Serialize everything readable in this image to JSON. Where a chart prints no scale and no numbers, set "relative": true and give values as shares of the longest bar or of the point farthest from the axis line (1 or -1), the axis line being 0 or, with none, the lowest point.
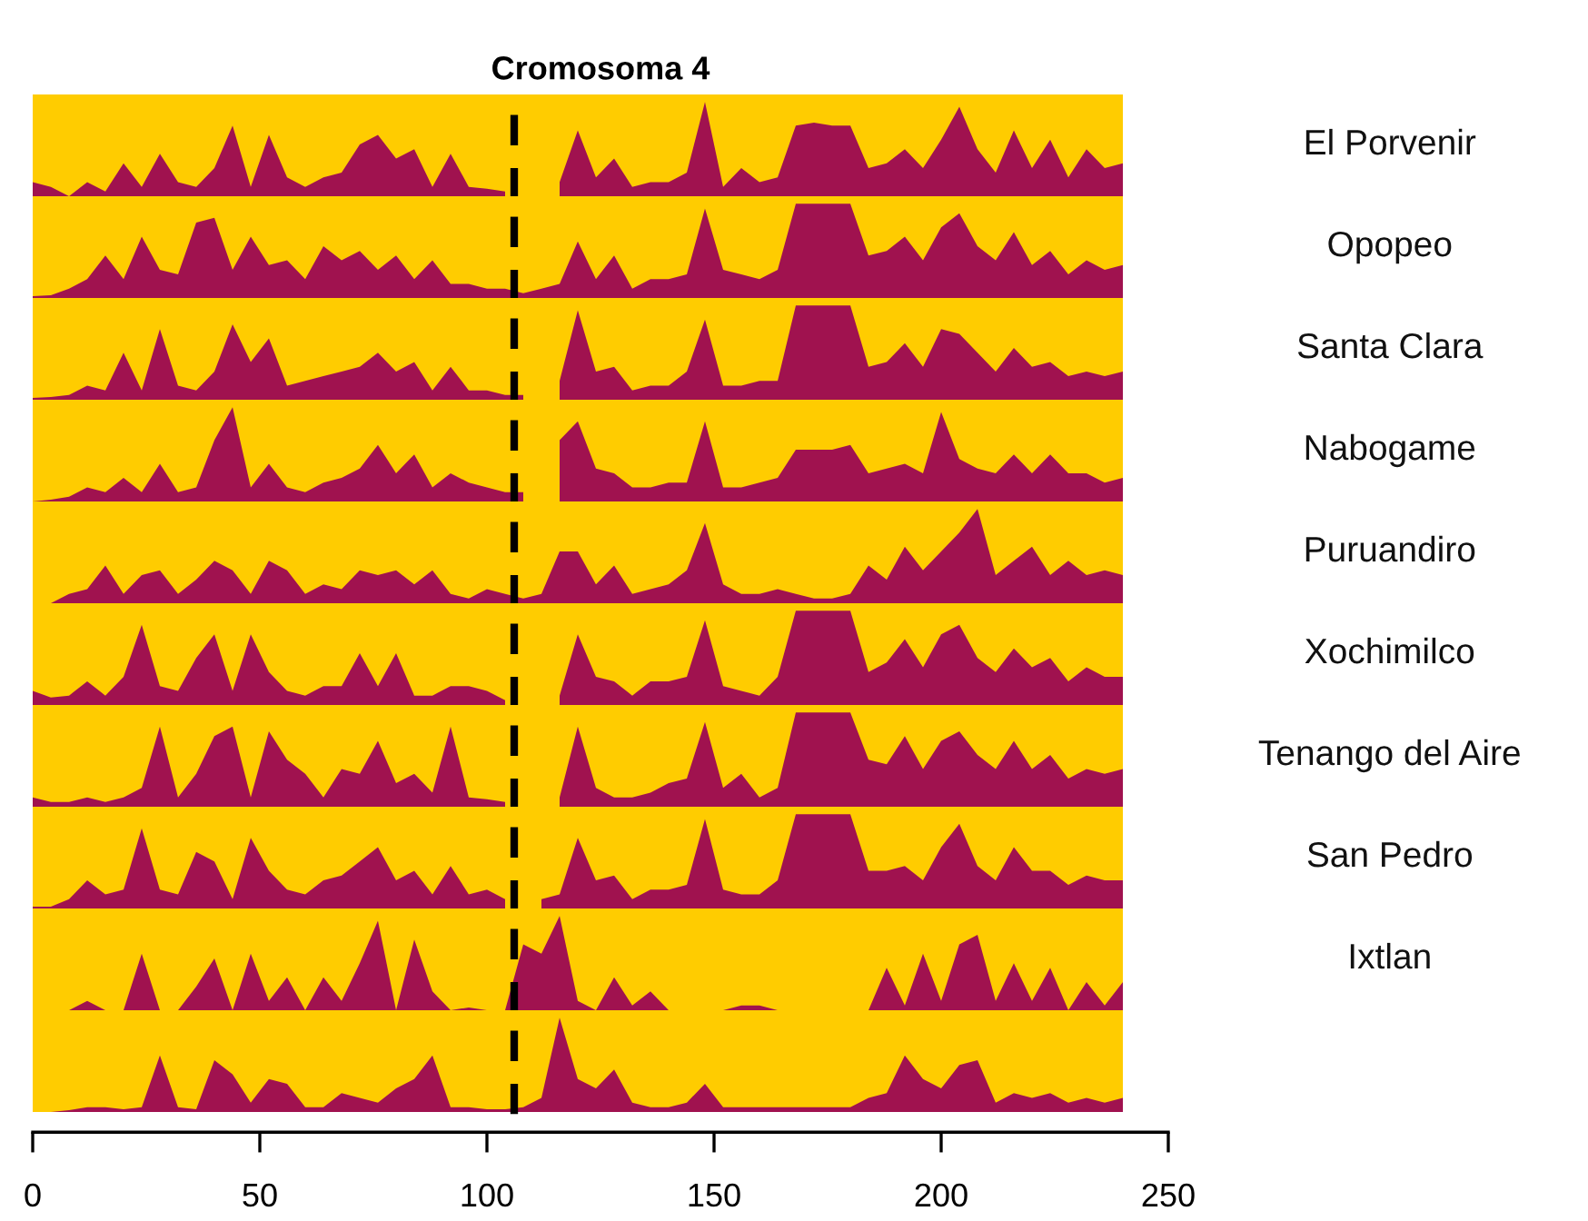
{
  "chart_data": [
    {
      "type": "area",
      "relative": true,
      "title": "Cromosoma 4",
      "xlim": [
        0,
        250
      ],
      "tick_labels": false,
      "x": [
        0,
        4,
        8,
        12,
        16,
        20,
        24,
        28,
        32,
        36,
        40,
        44,
        48,
        52,
        56,
        60,
        64,
        68,
        72,
        76,
        80,
        84,
        88,
        92,
        96,
        100,
        104,
        108,
        112,
        116,
        120,
        124,
        128,
        132,
        136,
        140,
        144,
        148,
        152,
        156,
        160,
        164,
        168,
        172,
        176,
        180,
        184,
        188,
        192,
        196,
        200,
        204,
        208,
        212,
        216,
        220,
        224,
        228,
        232,
        236,
        240
      ],
      "series": [
        {
          "name": "El Porvenir",
          "color": "#a0124f",
          "values": [
            0.15,
            0.1,
            0,
            0.15,
            0.05,
            0.35,
            0.1,
            0.45,
            0.15,
            0.1,
            0.3,
            0.75,
            0.1,
            0.65,
            0.2,
            0.1,
            0.2,
            0.25,
            0.55,
            0.65,
            0.4,
            0.5,
            0.1,
            0.45,
            0.1,
            0.08,
            0.05,
            null,
            null,
            0.15,
            0.7,
            0.2,
            0.4,
            0.1,
            0.15,
            0.15,
            0.25,
            1.0,
            0.1,
            0.3,
            0.15,
            0.2,
            0.75,
            0.78,
            0.75,
            0.75,
            0.3,
            0.35,
            0.5,
            0.3,
            0.6,
            0.95,
            0.5,
            0.25,
            0.7,
            0.3,
            0.6,
            0.2,
            0.5,
            0.3,
            0.35
          ]
        }
      ],
      "ref_lines": [
        {
          "axis": "x",
          "value": 106,
          "color": "#000000",
          "line_style": "dashed"
        }
      ]
    },
    {
      "type": "area",
      "relative": true,
      "xlim": [
        0,
        250
      ],
      "tick_labels": false,
      "x": [
        0,
        4,
        8,
        12,
        16,
        20,
        24,
        28,
        32,
        36,
        40,
        44,
        48,
        52,
        56,
        60,
        64,
        68,
        72,
        76,
        80,
        84,
        88,
        92,
        96,
        100,
        104,
        108,
        112,
        116,
        120,
        124,
        128,
        132,
        136,
        140,
        144,
        148,
        152,
        156,
        160,
        164,
        168,
        172,
        176,
        180,
        184,
        188,
        192,
        196,
        200,
        204,
        208,
        212,
        216,
        220,
        224,
        228,
        232,
        236,
        240
      ],
      "series": [
        {
          "name": "Opopeo",
          "color": "#a0124f",
          "values": [
            0.02,
            0.03,
            0.1,
            0.2,
            0.45,
            0.2,
            0.65,
            0.3,
            0.25,
            0.8,
            0.85,
            0.3,
            0.65,
            0.35,
            0.4,
            0.2,
            0.55,
            0.4,
            0.5,
            0.3,
            0.45,
            0.2,
            0.4,
            0.15,
            0.15,
            0.1,
            0.1,
            0.05,
            0.1,
            0.15,
            0.6,
            0.2,
            0.45,
            0.1,
            0.2,
            0.2,
            0.25,
            0.95,
            0.3,
            0.25,
            0.2,
            0.3,
            1.0,
            1.0,
            1.0,
            1.0,
            0.45,
            0.5,
            0.65,
            0.4,
            0.75,
            0.9,
            0.55,
            0.4,
            0.7,
            0.35,
            0.5,
            0.25,
            0.4,
            0.3,
            0.35
          ]
        }
      ],
      "ref_lines": [
        {
          "axis": "x",
          "value": 106,
          "color": "#000000",
          "line_style": "dashed"
        }
      ]
    },
    {
      "type": "area",
      "relative": true,
      "xlim": [
        0,
        250
      ],
      "tick_labels": false,
      "x": [
        0,
        4,
        8,
        12,
        16,
        20,
        24,
        28,
        32,
        36,
        40,
        44,
        48,
        52,
        56,
        60,
        64,
        68,
        72,
        76,
        80,
        84,
        88,
        92,
        96,
        100,
        104,
        108,
        112,
        116,
        120,
        124,
        128,
        132,
        136,
        140,
        144,
        148,
        152,
        156,
        160,
        164,
        168,
        172,
        176,
        180,
        184,
        188,
        192,
        196,
        200,
        204,
        208,
        212,
        216,
        220,
        224,
        228,
        232,
        236,
        240
      ],
      "series": [
        {
          "name": "Santa Clara",
          "color": "#a0124f",
          "values": [
            0.02,
            0.03,
            0.05,
            0.15,
            0.1,
            0.5,
            0.1,
            0.75,
            0.15,
            0.1,
            0.3,
            0.8,
            0.4,
            0.65,
            0.15,
            0.2,
            0.25,
            0.3,
            0.35,
            0.5,
            0.3,
            0.4,
            0.1,
            0.35,
            0.1,
            0.1,
            0.05,
            0.05,
            null,
            0.2,
            0.95,
            0.3,
            0.35,
            0.1,
            0.15,
            0.15,
            0.3,
            0.85,
            0.15,
            0.15,
            0.2,
            0.2,
            1.0,
            1.0,
            1.0,
            1.0,
            0.35,
            0.4,
            0.6,
            0.35,
            0.75,
            0.7,
            0.5,
            0.3,
            0.55,
            0.35,
            0.4,
            0.25,
            0.3,
            0.25,
            0.3
          ]
        }
      ],
      "ref_lines": [
        {
          "axis": "x",
          "value": 106,
          "color": "#000000",
          "line_style": "dashed"
        }
      ]
    },
    {
      "type": "area",
      "relative": true,
      "xlim": [
        0,
        250
      ],
      "tick_labels": false,
      "x": [
        0,
        4,
        8,
        12,
        16,
        20,
        24,
        28,
        32,
        36,
        40,
        44,
        48,
        52,
        56,
        60,
        64,
        68,
        72,
        76,
        80,
        84,
        88,
        92,
        96,
        100,
        104,
        108,
        112,
        116,
        120,
        124,
        128,
        132,
        136,
        140,
        144,
        148,
        152,
        156,
        160,
        164,
        168,
        172,
        176,
        180,
        184,
        188,
        192,
        196,
        200,
        204,
        208,
        212,
        216,
        220,
        224,
        228,
        232,
        236,
        240
      ],
      "series": [
        {
          "name": "Nabogame",
          "color": "#a0124f",
          "values": [
            0,
            0.02,
            0.05,
            0.15,
            0.1,
            0.25,
            0.1,
            0.4,
            0.1,
            0.15,
            0.65,
            1.0,
            0.15,
            0.4,
            0.15,
            0.1,
            0.2,
            0.25,
            0.35,
            0.6,
            0.3,
            0.5,
            0.15,
            0.3,
            0.2,
            0.15,
            0.1,
            0.1,
            null,
            0.65,
            0.85,
            0.35,
            0.3,
            0.15,
            0.15,
            0.2,
            0.2,
            0.85,
            0.15,
            0.15,
            0.2,
            0.25,
            0.55,
            0.55,
            0.55,
            0.6,
            0.3,
            0.35,
            0.4,
            0.3,
            0.95,
            0.45,
            0.35,
            0.3,
            0.5,
            0.3,
            0.5,
            0.3,
            0.3,
            0.2,
            0.25
          ]
        }
      ],
      "ref_lines": [
        {
          "axis": "x",
          "value": 106,
          "color": "#000000",
          "line_style": "dashed"
        }
      ]
    },
    {
      "type": "area",
      "relative": true,
      "xlim": [
        0,
        250
      ],
      "tick_labels": false,
      "x": [
        0,
        4,
        8,
        12,
        16,
        20,
        24,
        28,
        32,
        36,
        40,
        44,
        48,
        52,
        56,
        60,
        64,
        68,
        72,
        76,
        80,
        84,
        88,
        92,
        96,
        100,
        104,
        108,
        112,
        116,
        120,
        124,
        128,
        132,
        136,
        140,
        144,
        148,
        152,
        156,
        160,
        164,
        168,
        172,
        176,
        180,
        184,
        188,
        192,
        196,
        200,
        204,
        208,
        212,
        216,
        220,
        224,
        228,
        232,
        236,
        240
      ],
      "series": [
        {
          "name": "Puruandiro",
          "color": "#a0124f",
          "values": [
            0,
            0,
            0.1,
            0.15,
            0.4,
            0.1,
            0.3,
            0.35,
            0.1,
            0.25,
            0.45,
            0.35,
            0.1,
            0.45,
            0.35,
            0.1,
            0.2,
            0.15,
            0.35,
            0.3,
            0.35,
            0.2,
            0.35,
            0.1,
            0.05,
            0.15,
            0.1,
            0.05,
            0.1,
            0.55,
            0.55,
            0.2,
            0.4,
            0.1,
            0.15,
            0.2,
            0.35,
            0.85,
            0.2,
            0.1,
            0.1,
            0.15,
            0.1,
            0.05,
            0.05,
            0.1,
            0.4,
            0.25,
            0.6,
            0.35,
            0.55,
            0.75,
            1.0,
            0.3,
            0.45,
            0.6,
            0.3,
            0.45,
            0.3,
            0.35,
            0.3
          ]
        }
      ],
      "ref_lines": [
        {
          "axis": "x",
          "value": 106,
          "color": "#000000",
          "line_style": "dashed"
        }
      ]
    },
    {
      "type": "area",
      "relative": true,
      "xlim": [
        0,
        250
      ],
      "tick_labels": false,
      "x": [
        0,
        4,
        8,
        12,
        16,
        20,
        24,
        28,
        32,
        36,
        40,
        44,
        48,
        52,
        56,
        60,
        64,
        68,
        72,
        76,
        80,
        84,
        88,
        92,
        96,
        100,
        104,
        108,
        112,
        116,
        120,
        124,
        128,
        132,
        136,
        140,
        144,
        148,
        152,
        156,
        160,
        164,
        168,
        172,
        176,
        180,
        184,
        188,
        192,
        196,
        200,
        204,
        208,
        212,
        216,
        220,
        224,
        228,
        232,
        236,
        240
      ],
      "series": [
        {
          "name": "Xochimilco",
          "color": "#a0124f",
          "values": [
            0.15,
            0.08,
            0.1,
            0.25,
            0.1,
            0.3,
            0.85,
            0.2,
            0.15,
            0.5,
            0.75,
            0.15,
            0.75,
            0.35,
            0.15,
            0.1,
            0.2,
            0.2,
            0.55,
            0.2,
            0.55,
            0.1,
            0.1,
            0.2,
            0.2,
            0.15,
            0.05,
            null,
            null,
            0.1,
            0.75,
            0.3,
            0.25,
            0.1,
            0.25,
            0.25,
            0.3,
            0.9,
            0.2,
            0.15,
            0.1,
            0.3,
            1.0,
            1.0,
            1.0,
            1.0,
            0.35,
            0.45,
            0.7,
            0.4,
            0.75,
            0.85,
            0.5,
            0.35,
            0.6,
            0.4,
            0.5,
            0.25,
            0.4,
            0.3,
            0.3
          ]
        }
      ],
      "ref_lines": [
        {
          "axis": "x",
          "value": 106,
          "color": "#000000",
          "line_style": "dashed"
        }
      ]
    },
    {
      "type": "area",
      "relative": true,
      "xlim": [
        0,
        250
      ],
      "tick_labels": false,
      "x": [
        0,
        4,
        8,
        12,
        16,
        20,
        24,
        28,
        32,
        36,
        40,
        44,
        48,
        52,
        56,
        60,
        64,
        68,
        72,
        76,
        80,
        84,
        88,
        92,
        96,
        100,
        104,
        108,
        112,
        116,
        120,
        124,
        128,
        132,
        136,
        140,
        144,
        148,
        152,
        156,
        160,
        164,
        168,
        172,
        176,
        180,
        184,
        188,
        192,
        196,
        200,
        204,
        208,
        212,
        216,
        220,
        224,
        228,
        232,
        236,
        240
      ],
      "series": [
        {
          "name": "Tenango del Aire",
          "color": "#a0124f",
          "values": [
            0.1,
            0.05,
            0.05,
            0.1,
            0.05,
            0.1,
            0.2,
            0.85,
            0.1,
            0.35,
            0.75,
            0.85,
            0.1,
            0.8,
            0.5,
            0.35,
            0.1,
            0.4,
            0.35,
            0.7,
            0.25,
            0.35,
            0.15,
            0.85,
            0.1,
            0.08,
            0.05,
            null,
            null,
            0.1,
            0.85,
            0.2,
            0.1,
            0.1,
            0.15,
            0.25,
            0.3,
            0.9,
            0.2,
            0.35,
            0.1,
            0.2,
            1.0,
            1.0,
            1.0,
            1.0,
            0.5,
            0.45,
            0.75,
            0.4,
            0.7,
            0.8,
            0.55,
            0.4,
            0.7,
            0.4,
            0.55,
            0.3,
            0.4,
            0.35,
            0.4
          ]
        }
      ],
      "ref_lines": [
        {
          "axis": "x",
          "value": 106,
          "color": "#000000",
          "line_style": "dashed"
        }
      ]
    },
    {
      "type": "area",
      "relative": true,
      "xlim": [
        0,
        250
      ],
      "tick_labels": false,
      "x": [
        0,
        4,
        8,
        12,
        16,
        20,
        24,
        28,
        32,
        36,
        40,
        44,
        48,
        52,
        56,
        60,
        64,
        68,
        72,
        76,
        80,
        84,
        88,
        92,
        96,
        100,
        104,
        108,
        112,
        116,
        120,
        124,
        128,
        132,
        136,
        140,
        144,
        148,
        152,
        156,
        160,
        164,
        168,
        172,
        176,
        180,
        184,
        188,
        192,
        196,
        200,
        204,
        208,
        212,
        216,
        220,
        224,
        228,
        232,
        236,
        240
      ],
      "series": [
        {
          "name": "San Pedro",
          "color": "#a0124f",
          "values": [
            0.02,
            0.02,
            0.1,
            0.3,
            0.15,
            0.2,
            0.85,
            0.2,
            0.15,
            0.6,
            0.5,
            0.1,
            0.75,
            0.4,
            0.2,
            0.15,
            0.3,
            0.35,
            0.5,
            0.65,
            0.3,
            0.4,
            0.15,
            0.45,
            0.15,
            0.2,
            0.1,
            null,
            0.1,
            0.15,
            0.75,
            0.3,
            0.35,
            0.1,
            0.2,
            0.2,
            0.25,
            0.95,
            0.2,
            0.15,
            0.15,
            0.3,
            1.0,
            1.0,
            1.0,
            1.0,
            0.4,
            0.4,
            0.45,
            0.3,
            0.65,
            0.9,
            0.45,
            0.3,
            0.65,
            0.4,
            0.4,
            0.25,
            0.35,
            0.3,
            0.3
          ]
        }
      ],
      "ref_lines": [
        {
          "axis": "x",
          "value": 106,
          "color": "#000000",
          "line_style": "dashed"
        }
      ]
    },
    {
      "type": "area",
      "relative": true,
      "xlim": [
        0,
        250
      ],
      "tick_labels": false,
      "x": [
        0,
        4,
        8,
        12,
        16,
        20,
        24,
        28,
        32,
        36,
        40,
        44,
        48,
        52,
        56,
        60,
        64,
        68,
        72,
        76,
        80,
        84,
        88,
        92,
        96,
        100,
        104,
        108,
        112,
        116,
        120,
        124,
        128,
        132,
        136,
        140,
        144,
        148,
        152,
        156,
        160,
        164,
        168,
        172,
        176,
        180,
        184,
        188,
        192,
        196,
        200,
        204,
        208,
        212,
        216,
        220,
        224,
        228,
        232,
        236,
        240
      ],
      "series": [
        {
          "name": "Ixtlan",
          "color": "#a0124f",
          "values": [
            0,
            0,
            0,
            0.1,
            0,
            0,
            0.6,
            0,
            0,
            0.25,
            0.55,
            0,
            0.6,
            0.1,
            0.35,
            0,
            0.35,
            0.1,
            0.5,
            0.95,
            0,
            0.75,
            0.2,
            0,
            0.03,
            0,
            0,
            0.7,
            0.6,
            1.0,
            0.1,
            0,
            0.35,
            0.05,
            0.2,
            0,
            0,
            0,
            0,
            0.05,
            0.05,
            0,
            0,
            0,
            0,
            0,
            0,
            0.45,
            0.05,
            0.6,
            0.1,
            0.7,
            0.8,
            0.1,
            0.5,
            0.1,
            0.45,
            0,
            0.3,
            0.05,
            0.3
          ]
        }
      ],
      "ref_lines": [
        {
          "axis": "x",
          "value": 106,
          "color": "#000000",
          "line_style": "dashed"
        }
      ]
    },
    {
      "type": "area",
      "relative": true,
      "xlim": [
        0,
        250
      ],
      "xticks": [
        0,
        50,
        100,
        150,
        200,
        250
      ],
      "tick_labels": "x",
      "x": [
        0,
        4,
        8,
        12,
        16,
        20,
        24,
        28,
        32,
        36,
        40,
        44,
        48,
        52,
        56,
        60,
        64,
        68,
        72,
        76,
        80,
        84,
        88,
        92,
        96,
        100,
        104,
        108,
        112,
        116,
        120,
        124,
        128,
        132,
        136,
        140,
        144,
        148,
        152,
        156,
        160,
        164,
        168,
        172,
        176,
        180,
        184,
        188,
        192,
        196,
        200,
        204,
        208,
        212,
        216,
        220,
        224,
        228,
        232,
        236,
        240
      ],
      "series": [
        {
          "color": "#a0124f",
          "values": [
            0,
            0,
            0.02,
            0.05,
            0.05,
            0.03,
            0.05,
            0.6,
            0.05,
            0.03,
            0.55,
            0.4,
            0.1,
            0.35,
            0.3,
            0.05,
            0.05,
            0.2,
            0.15,
            0.1,
            0.25,
            0.35,
            0.6,
            0.05,
            0.05,
            0.03,
            0.03,
            0.05,
            0.15,
            1.0,
            0.35,
            0.25,
            0.45,
            0.1,
            0.05,
            0.05,
            0.1,
            0.3,
            0.05,
            0.05,
            0.05,
            0.05,
            0.05,
            0.05,
            0.05,
            0.05,
            0.15,
            0.2,
            0.6,
            0.35,
            0.25,
            0.5,
            0.55,
            0.1,
            0.2,
            0.15,
            0.2,
            0.1,
            0.15,
            0.1,
            0.15
          ]
        }
      ],
      "ref_lines": [
        {
          "axis": "x",
          "value": 106,
          "color": "#000000",
          "line_style": "dashed"
        }
      ]
    }
  ]
}
